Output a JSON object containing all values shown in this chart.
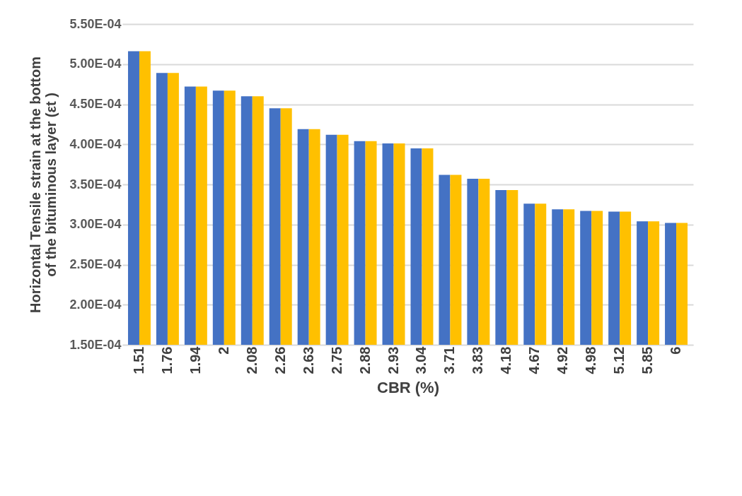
{
  "chart_data": {
    "type": "bar",
    "xlabel": "CBR (%)",
    "ylabel": "Horizontal Tensile strain at the bottom of the bituminous layer (εt )",
    "categories": [
      "1.51",
      "1.76",
      "1.94",
      "2",
      "2.08",
      "2.26",
      "2.63",
      "2.75",
      "2.88",
      "2.93",
      "3.04",
      "3.71",
      "3.83",
      "4.18",
      "4.67",
      "4.92",
      "4.98",
      "5.12",
      "5.85",
      "6"
    ],
    "series": [
      {
        "color": "#4472c4",
        "values": [
          0.000516,
          0.000489,
          0.000472,
          0.000467,
          0.00046,
          0.000445,
          0.000419,
          0.000412,
          0.000404,
          0.000401,
          0.000395,
          0.000362,
          0.000357,
          0.000343,
          0.000326,
          0.000319,
          0.000317,
          0.000316,
          0.000304,
          0.000302
        ]
      },
      {
        "color": "#ffc000",
        "values": [
          0.000516,
          0.000489,
          0.000472,
          0.000467,
          0.00046,
          0.000445,
          0.000419,
          0.000412,
          0.000404,
          0.000401,
          0.000395,
          0.000362,
          0.000357,
          0.000343,
          0.000326,
          0.000319,
          0.000317,
          0.000316,
          0.000304,
          0.000302
        ]
      }
    ],
    "ylim": [
      0.00015,
      0.00055
    ],
    "yticks": [
      {
        "value": 0.00015,
        "label": "1.50E-04"
      },
      {
        "value": 0.0002,
        "label": "2.00E-04"
      },
      {
        "value": 0.00025,
        "label": "2.50E-04"
      },
      {
        "value": 0.0003,
        "label": "3.00E-04"
      },
      {
        "value": 0.00035,
        "label": "3.50E-04"
      },
      {
        "value": 0.0004,
        "label": "4.00E-04"
      },
      {
        "value": 0.00045,
        "label": "4.50E-04"
      },
      {
        "value": 0.0005,
        "label": "5.00E-04"
      },
      {
        "value": 0.00055,
        "label": "5.50E-04"
      }
    ],
    "grid": "y",
    "legend": false
  }
}
